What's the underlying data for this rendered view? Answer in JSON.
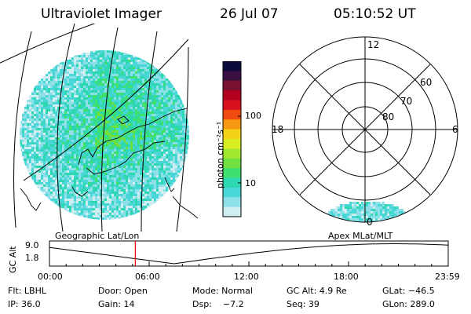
{
  "header": {
    "title": "Ultraviolet Imager",
    "date": "26 Jul 07",
    "time": "05:10:52 UT"
  },
  "colorbar": {
    "unit_label": "photon cm⁻²s⁻¹",
    "ticks": [
      "100",
      "10"
    ],
    "colors": [
      "#0b0b3b",
      "#3a1040",
      "#7a1030",
      "#b30020",
      "#d81020",
      "#ef4b10",
      "#f59a10",
      "#f5d21a",
      "#d6ee20",
      "#a2e830",
      "#6ee040",
      "#3ee06e",
      "#2dd8b0",
      "#48d6d6",
      "#8ee0e8",
      "#d0eef2"
    ]
  },
  "polar": {
    "lat_labels": [
      "60",
      "70",
      "80"
    ],
    "mlt_labels": {
      "top": "12",
      "left": "18",
      "right": "6",
      "bottom": "0"
    }
  },
  "panel_labels": {
    "left": "Geographic Lat/Lon",
    "right": "Apex MLat/MLT"
  },
  "timeline": {
    "ylabel": "GC Alt",
    "yticks": [
      "9.0",
      "1.8"
    ],
    "xticks": [
      "00:00",
      "06:00",
      "12:00",
      "18:00",
      "23:59"
    ],
    "current_time": "05:10",
    "marker_color": "#ff0000"
  },
  "info": [
    [
      "Flt: LBHL",
      "Door: Open",
      "Mode: Normal",
      "GC Alt: 4.9 Re",
      "GLat: −46.5"
    ],
    [
      "IP: 36.0",
      "Gain: 14",
      "Dsp:    −7.2",
      "Seq: 39",
      "GLon: 289.0"
    ]
  ]
}
